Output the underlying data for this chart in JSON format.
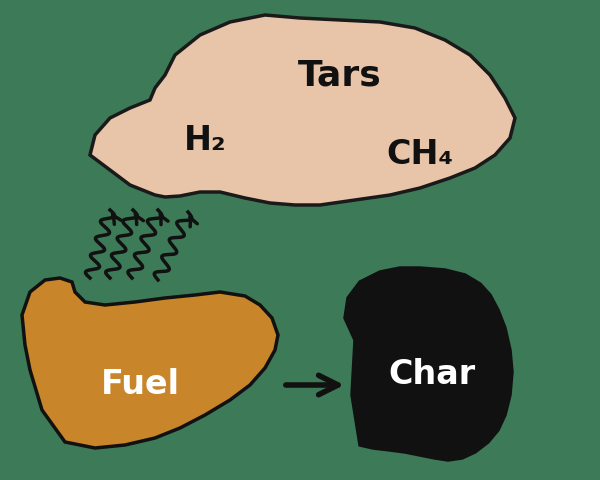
{
  "background_color": "#3d7a58",
  "cloud_color": "#e8c4a8",
  "cloud_edge_color": "#1a1a1a",
  "fuel_color": "#c8852a",
  "fuel_edge_color": "#111111",
  "char_color": "#111111",
  "char_edge_color": "#111111",
  "arrow_color": "#111111",
  "tars_text": "Tars",
  "h2_text": "H₂",
  "ch4_text": "CH₄",
  "fuel_text": "Fuel",
  "char_text": "Char",
  "fuel_text_color": "#ffffff",
  "char_text_color": "#ffffff",
  "tars_text_color": "#111111",
  "h2_text_color": "#111111",
  "ch4_text_color": "#111111"
}
